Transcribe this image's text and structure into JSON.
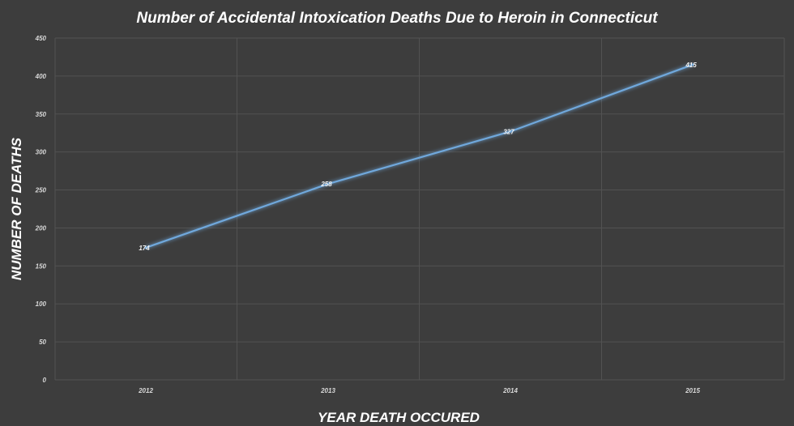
{
  "chart_data": {
    "type": "line",
    "title": "Number of Accidental Intoxication Deaths Due to Heroin in Connecticut",
    "xlabel": "YEAR DEATH OCCURED",
    "ylabel": "NUMBER OF DEATHS",
    "categories": [
      "2012",
      "2013",
      "2014",
      "2015"
    ],
    "series": [
      {
        "values": [
          174,
          258,
          327,
          415
        ]
      }
    ],
    "data_labels": [
      "174",
      "258",
      "327",
      "415"
    ],
    "ylim": [
      0,
      450
    ],
    "yticks": [
      0,
      50,
      100,
      150,
      200,
      250,
      300,
      350,
      400,
      450
    ],
    "grid": true,
    "line_color": "#6fa8dc",
    "background_color": "#3d3d3d"
  }
}
